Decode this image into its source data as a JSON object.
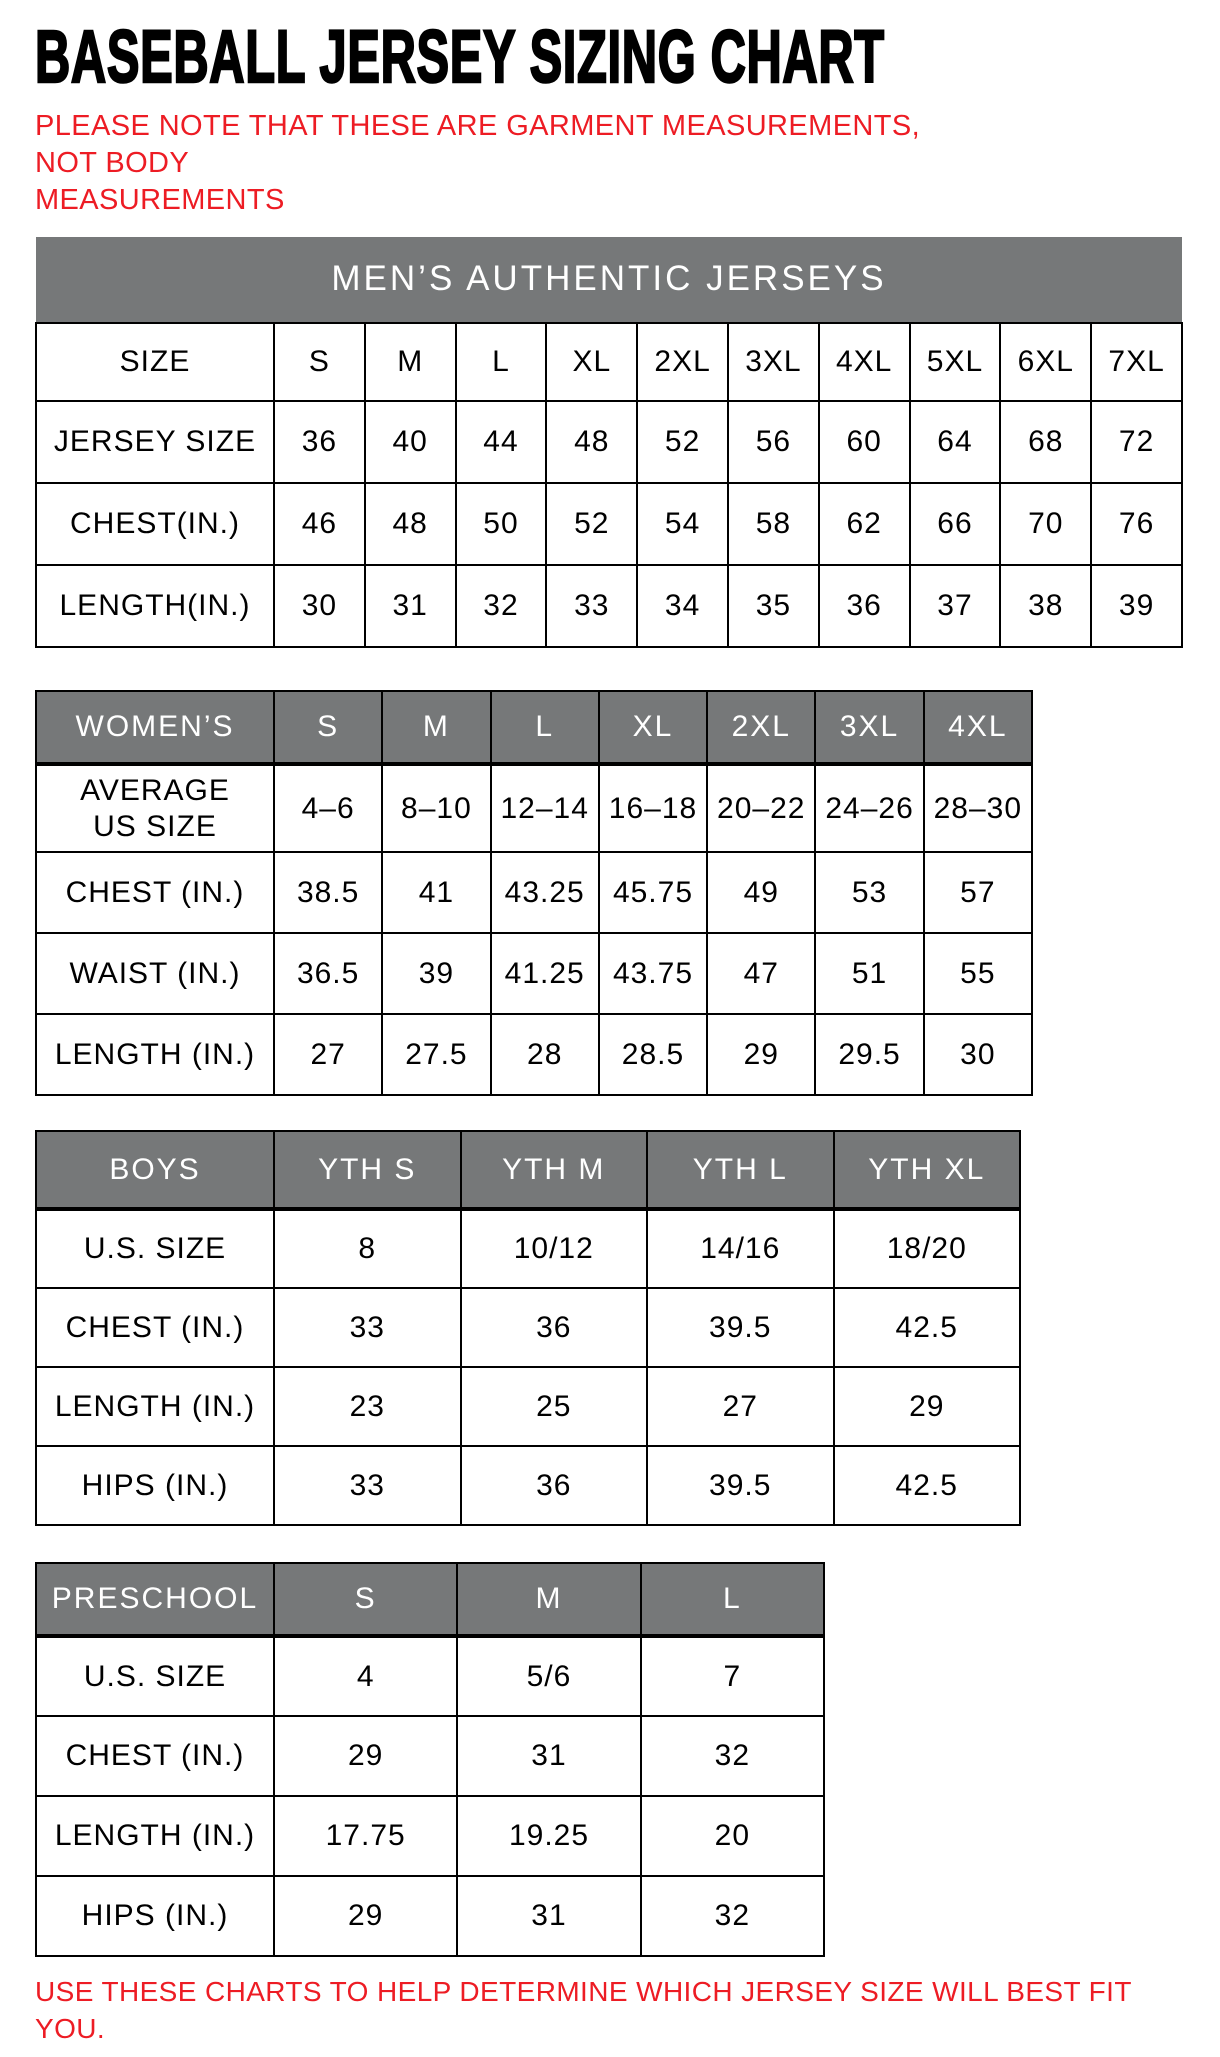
{
  "page": {
    "title": "BASEBALL JERSEY SIZING CHART",
    "note_top": "PLEASE NOTE THAT THESE ARE GARMENT MEASUREMENTS, NOT BODY\nMEASUREMENTS",
    "note_bottom": "USE THESE CHARTS TO HELP DETERMINE WHICH JERSEY SIZE WILL BEST FIT YOU.",
    "colors": {
      "accent_red": "#ed1c24",
      "header_gray": "#767879",
      "grid_black": "#000000"
    }
  },
  "tables": [
    {
      "name": "mens",
      "banner": "MEN’S AUTHENTIC JERSEYS",
      "columns": [
        "SIZE",
        "S",
        "M",
        "L",
        "XL",
        "2XL",
        "3XL",
        "4XL",
        "5XL",
        "6XL",
        "7XL"
      ],
      "rows": [
        {
          "label": "JERSEY SIZE",
          "values": [
            "36",
            "40",
            "44",
            "48",
            "52",
            "56",
            "60",
            "64",
            "68",
            "72"
          ]
        },
        {
          "label": "CHEST(IN.)",
          "values": [
            "46",
            "48",
            "50",
            "52",
            "54",
            "58",
            "62",
            "66",
            "70",
            "76"
          ]
        },
        {
          "label": "LENGTH(IN.)",
          "values": [
            "30",
            "31",
            "32",
            "33",
            "34",
            "35",
            "36",
            "37",
            "38",
            "39"
          ]
        }
      ]
    },
    {
      "name": "womens",
      "columns": [
        "WOMEN’S",
        "S",
        "M",
        "L",
        "XL",
        "2XL",
        "3XL",
        "4XL"
      ],
      "rows": [
        {
          "label": "AVERAGE\nUS SIZE",
          "values": [
            "4–6",
            "8–10",
            "12–14",
            "16–18",
            "20–22",
            "24–26",
            "28–30"
          ]
        },
        {
          "label": "CHEST (IN.)",
          "values": [
            "38.5",
            "41",
            "43.25",
            "45.75",
            "49",
            "53",
            "57"
          ]
        },
        {
          "label": "WAIST (IN.)",
          "values": [
            "36.5",
            "39",
            "41.25",
            "43.75",
            "47",
            "51",
            "55"
          ]
        },
        {
          "label": "LENGTH (IN.)",
          "values": [
            "27",
            "27.5",
            "28",
            "28.5",
            "29",
            "29.5",
            "30"
          ]
        }
      ]
    },
    {
      "name": "boys",
      "columns": [
        "BOYS",
        "YTH S",
        "YTH M",
        "YTH L",
        "YTH XL"
      ],
      "rows": [
        {
          "label": "U.S. SIZE",
          "values": [
            "8",
            "10/12",
            "14/16",
            "18/20"
          ]
        },
        {
          "label": "CHEST (IN.)",
          "values": [
            "33",
            "36",
            "39.5",
            "42.5"
          ]
        },
        {
          "label": "LENGTH (IN.)",
          "values": [
            "23",
            "25",
            "27",
            "29"
          ]
        },
        {
          "label": "HIPS (IN.)",
          "values": [
            "33",
            "36",
            "39.5",
            "42.5"
          ]
        }
      ]
    },
    {
      "name": "preschool",
      "columns": [
        "PRESCHOOL",
        "S",
        "M",
        "L"
      ],
      "rows": [
        {
          "label": "U.S. SIZE",
          "values": [
            "4",
            "5/6",
            "7"
          ]
        },
        {
          "label": "CHEST (IN.)",
          "values": [
            "29",
            "31",
            "32"
          ]
        },
        {
          "label": "LENGTH (IN.)",
          "values": [
            "17.75",
            "19.25",
            "20"
          ]
        },
        {
          "label": "HIPS (IN.)",
          "values": [
            "29",
            "31",
            "32"
          ]
        }
      ]
    }
  ]
}
